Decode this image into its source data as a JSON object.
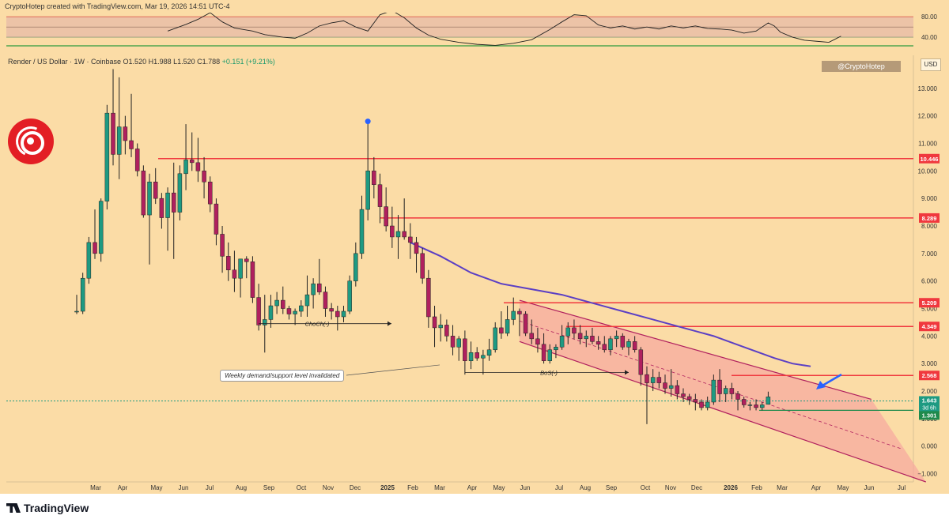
{
  "header": {
    "credit": "CryptoHotep created with TradingView.com, Mar 19, 2026 14:51 UTC-4"
  },
  "symbol": {
    "line": "Render / US Dollar · 1W · Coinbase  O1.520  H1.988  L1.520  C1.788",
    "change": "+0.151 (+9.21%)"
  },
  "watermark": "@CryptoHotep",
  "currency": "USD",
  "brand": "TradingView",
  "colors": {
    "up": "#1e9a82",
    "down": "#b0205e",
    "level": "#f0383e",
    "ma": "#5b3fc4",
    "channel": "#f7a6a0",
    "background": "#fbdca6"
  },
  "annotations": {
    "note": "Weekly demand/support level invalidated",
    "choch": "ChoCh(-)",
    "bos": "BoS(-)"
  },
  "rsi_panel": {
    "levels": [
      "80.00",
      "40.00"
    ]
  },
  "chart_data": {
    "type": "candlestick",
    "title": "Render / US Dollar · 1W · Coinbase",
    "x_labels": [
      "Mar",
      "Apr",
      "May",
      "Jun",
      "Jul",
      "Aug",
      "Sep",
      "Oct",
      "Nov",
      "Dec",
      "2025",
      "Feb",
      "Mar",
      "Apr",
      "May",
      "Jun",
      "Jul",
      "Aug",
      "Sep",
      "Oct",
      "Nov",
      "Dec",
      "2026",
      "Feb",
      "Mar",
      "Apr",
      "May",
      "Jun",
      "Jul"
    ],
    "y_ticks": [
      13,
      12,
      11,
      10,
      9,
      8,
      7,
      6,
      5,
      4,
      3,
      2,
      1,
      0,
      -1
    ],
    "y_range": [
      -1.3,
      14.2
    ],
    "horizontal_levels": [
      {
        "value": 10.446,
        "label": "10.446"
      },
      {
        "value": 8.289,
        "label": "8.289"
      },
      {
        "value": 5.209,
        "label": "5.209"
      },
      {
        "value": 4.349,
        "label": "4.349"
      },
      {
        "value": 2.568,
        "label": "2.568"
      }
    ],
    "last_price": {
      "value": 1.643,
      "label": "1.643",
      "countdown": "3d 6h"
    },
    "support": {
      "value": 1.301,
      "label": "1.301"
    },
    "candles": [
      {
        "o": 4.9,
        "h": 5.5,
        "l": 4.8,
        "c": 4.9
      },
      {
        "o": 4.9,
        "h": 6.3,
        "l": 4.8,
        "c": 6.1
      },
      {
        "o": 6.1,
        "h": 7.6,
        "l": 5.9,
        "c": 7.4
      },
      {
        "o": 7.4,
        "h": 8.6,
        "l": 6.8,
        "c": 7.0
      },
      {
        "o": 7.0,
        "h": 9.0,
        "l": 6.7,
        "c": 8.9
      },
      {
        "o": 8.9,
        "h": 12.4,
        "l": 8.6,
        "c": 12.1
      },
      {
        "o": 12.1,
        "h": 13.7,
        "l": 10.2,
        "c": 10.6
      },
      {
        "o": 10.6,
        "h": 13.4,
        "l": 9.7,
        "c": 11.6
      },
      {
        "o": 11.6,
        "h": 12.0,
        "l": 10.6,
        "c": 11.1
      },
      {
        "o": 11.1,
        "h": 12.8,
        "l": 10.5,
        "c": 10.8
      },
      {
        "o": 10.8,
        "h": 11.0,
        "l": 9.8,
        "c": 10.0
      },
      {
        "o": 10.0,
        "h": 10.2,
        "l": 8.3,
        "c": 8.4
      },
      {
        "o": 8.4,
        "h": 9.9,
        "l": 6.6,
        "c": 9.6
      },
      {
        "o": 9.6,
        "h": 10.1,
        "l": 8.8,
        "c": 9.0
      },
      {
        "o": 9.0,
        "h": 9.2,
        "l": 7.9,
        "c": 8.3
      },
      {
        "o": 8.3,
        "h": 9.4,
        "l": 7.1,
        "c": 9.2
      },
      {
        "o": 9.2,
        "h": 10.3,
        "l": 6.8,
        "c": 8.5
      },
      {
        "o": 8.5,
        "h": 10.2,
        "l": 8.2,
        "c": 9.9
      },
      {
        "o": 9.9,
        "h": 11.7,
        "l": 9.3,
        "c": 10.4
      },
      {
        "o": 10.4,
        "h": 11.4,
        "l": 10.0,
        "c": 10.3
      },
      {
        "o": 10.3,
        "h": 11.2,
        "l": 9.6,
        "c": 10.0
      },
      {
        "o": 10.0,
        "h": 10.5,
        "l": 9.0,
        "c": 9.6
      },
      {
        "o": 9.6,
        "h": 9.8,
        "l": 8.5,
        "c": 8.8
      },
      {
        "o": 8.8,
        "h": 9.0,
        "l": 7.3,
        "c": 7.7
      },
      {
        "o": 7.7,
        "h": 8.0,
        "l": 6.3,
        "c": 6.9
      },
      {
        "o": 6.9,
        "h": 7.4,
        "l": 6.0,
        "c": 6.4
      },
      {
        "o": 6.4,
        "h": 7.1,
        "l": 5.6,
        "c": 6.1
      },
      {
        "o": 6.1,
        "h": 6.8,
        "l": 5.4,
        "c": 6.8
      },
      {
        "o": 6.8,
        "h": 6.9,
        "l": 6.1,
        "c": 6.7
      },
      {
        "o": 6.7,
        "h": 6.9,
        "l": 5.2,
        "c": 5.4
      },
      {
        "o": 5.4,
        "h": 5.9,
        "l": 4.2,
        "c": 4.4
      },
      {
        "o": 4.4,
        "h": 5.5,
        "l": 3.4,
        "c": 4.6
      },
      {
        "o": 4.6,
        "h": 5.5,
        "l": 4.3,
        "c": 5.1
      },
      {
        "o": 5.1,
        "h": 5.6,
        "l": 4.8,
        "c": 5.3
      },
      {
        "o": 5.3,
        "h": 5.8,
        "l": 4.8,
        "c": 5.0
      },
      {
        "o": 5.0,
        "h": 5.1,
        "l": 4.6,
        "c": 4.8
      },
      {
        "o": 4.8,
        "h": 5.0,
        "l": 4.4,
        "c": 4.9
      },
      {
        "o": 4.9,
        "h": 5.3,
        "l": 4.7,
        "c": 5.1
      },
      {
        "o": 5.1,
        "h": 6.2,
        "l": 4.7,
        "c": 5.5
      },
      {
        "o": 5.5,
        "h": 6.1,
        "l": 5.0,
        "c": 5.9
      },
      {
        "o": 5.9,
        "h": 6.8,
        "l": 5.5,
        "c": 5.6
      },
      {
        "o": 5.6,
        "h": 5.8,
        "l": 4.7,
        "c": 5.0
      },
      {
        "o": 5.0,
        "h": 5.2,
        "l": 4.6,
        "c": 4.9
      },
      {
        "o": 4.9,
        "h": 5.1,
        "l": 4.2,
        "c": 4.7
      },
      {
        "o": 4.7,
        "h": 5.1,
        "l": 4.5,
        "c": 4.9
      },
      {
        "o": 4.9,
        "h": 6.2,
        "l": 4.8,
        "c": 6.0
      },
      {
        "o": 6.0,
        "h": 7.4,
        "l": 5.8,
        "c": 7.0
      },
      {
        "o": 7.0,
        "h": 9.1,
        "l": 6.8,
        "c": 8.6
      },
      {
        "o": 8.6,
        "h": 11.8,
        "l": 8.2,
        "c": 10.0
      },
      {
        "o": 10.0,
        "h": 10.5,
        "l": 9.0,
        "c": 9.5
      },
      {
        "o": 9.5,
        "h": 9.9,
        "l": 8.1,
        "c": 8.7
      },
      {
        "o": 8.7,
        "h": 9.4,
        "l": 7.8,
        "c": 8.0
      },
      {
        "o": 8.0,
        "h": 8.7,
        "l": 7.2,
        "c": 7.6
      },
      {
        "o": 7.6,
        "h": 8.4,
        "l": 6.8,
        "c": 7.8
      },
      {
        "o": 7.8,
        "h": 9.0,
        "l": 7.5,
        "c": 7.6
      },
      {
        "o": 7.6,
        "h": 8.1,
        "l": 6.8,
        "c": 7.4
      },
      {
        "o": 7.4,
        "h": 7.6,
        "l": 6.3,
        "c": 7.0
      },
      {
        "o": 7.0,
        "h": 7.2,
        "l": 5.9,
        "c": 6.1
      },
      {
        "o": 6.1,
        "h": 6.4,
        "l": 4.3,
        "c": 4.7
      },
      {
        "o": 4.7,
        "h": 5.1,
        "l": 3.6,
        "c": 4.3
      },
      {
        "o": 4.3,
        "h": 4.8,
        "l": 3.8,
        "c": 4.4
      },
      {
        "o": 4.4,
        "h": 4.6,
        "l": 3.8,
        "c": 4.0
      },
      {
        "o": 4.0,
        "h": 4.4,
        "l": 3.3,
        "c": 3.6
      },
      {
        "o": 3.6,
        "h": 4.0,
        "l": 3.1,
        "c": 3.9
      },
      {
        "o": 3.9,
        "h": 4.2,
        "l": 2.6,
        "c": 3.1
      },
      {
        "o": 3.1,
        "h": 3.8,
        "l": 2.8,
        "c": 3.4
      },
      {
        "o": 3.4,
        "h": 3.6,
        "l": 3.1,
        "c": 3.2
      },
      {
        "o": 3.2,
        "h": 3.5,
        "l": 2.6,
        "c": 3.3
      },
      {
        "o": 3.3,
        "h": 3.9,
        "l": 3.1,
        "c": 3.5
      },
      {
        "o": 3.5,
        "h": 4.5,
        "l": 3.4,
        "c": 4.3
      },
      {
        "o": 4.3,
        "h": 4.9,
        "l": 3.9,
        "c": 4.1
      },
      {
        "o": 4.1,
        "h": 5.1,
        "l": 4.0,
        "c": 4.6
      },
      {
        "o": 4.6,
        "h": 5.4,
        "l": 4.4,
        "c": 4.9
      },
      {
        "o": 4.9,
        "h": 5.0,
        "l": 4.0,
        "c": 4.8
      },
      {
        "o": 4.8,
        "h": 4.9,
        "l": 4.0,
        "c": 4.1
      },
      {
        "o": 4.1,
        "h": 4.6,
        "l": 3.7,
        "c": 3.9
      },
      {
        "o": 3.9,
        "h": 4.3,
        "l": 3.4,
        "c": 3.7
      },
      {
        "o": 3.7,
        "h": 4.1,
        "l": 3.0,
        "c": 3.1
      },
      {
        "o": 3.1,
        "h": 3.7,
        "l": 3.0,
        "c": 3.5
      },
      {
        "o": 3.5,
        "h": 3.7,
        "l": 3.2,
        "c": 3.6
      },
      {
        "o": 3.6,
        "h": 4.4,
        "l": 3.5,
        "c": 4.0
      },
      {
        "o": 4.0,
        "h": 4.5,
        "l": 3.7,
        "c": 4.3
      },
      {
        "o": 4.3,
        "h": 4.6,
        "l": 3.9,
        "c": 4.1
      },
      {
        "o": 4.1,
        "h": 4.4,
        "l": 3.7,
        "c": 3.9
      },
      {
        "o": 3.9,
        "h": 4.2,
        "l": 3.6,
        "c": 4.0
      },
      {
        "o": 4.0,
        "h": 4.3,
        "l": 3.7,
        "c": 3.8
      },
      {
        "o": 3.8,
        "h": 4.0,
        "l": 3.5,
        "c": 3.7
      },
      {
        "o": 3.7,
        "h": 4.0,
        "l": 3.4,
        "c": 3.5
      },
      {
        "o": 3.5,
        "h": 4.0,
        "l": 3.3,
        "c": 3.9
      },
      {
        "o": 3.9,
        "h": 4.2,
        "l": 3.6,
        "c": 4.0
      },
      {
        "o": 4.0,
        "h": 4.1,
        "l": 3.5,
        "c": 3.6
      },
      {
        "o": 3.6,
        "h": 3.9,
        "l": 3.3,
        "c": 3.8
      },
      {
        "o": 3.8,
        "h": 4.0,
        "l": 3.4,
        "c": 3.5
      },
      {
        "o": 3.5,
        "h": 3.6,
        "l": 2.2,
        "c": 2.6
      },
      {
        "o": 2.6,
        "h": 2.9,
        "l": 0.8,
        "c": 2.3
      },
      {
        "o": 2.3,
        "h": 2.8,
        "l": 2.0,
        "c": 2.5
      },
      {
        "o": 2.5,
        "h": 2.7,
        "l": 2.1,
        "c": 2.3
      },
      {
        "o": 2.3,
        "h": 2.6,
        "l": 1.9,
        "c": 2.1
      },
      {
        "o": 2.1,
        "h": 2.8,
        "l": 1.8,
        "c": 2.2
      },
      {
        "o": 2.2,
        "h": 2.4,
        "l": 1.7,
        "c": 1.9
      },
      {
        "o": 1.9,
        "h": 2.1,
        "l": 1.6,
        "c": 1.8
      },
      {
        "o": 1.8,
        "h": 1.9,
        "l": 1.5,
        "c": 1.7
      },
      {
        "o": 1.7,
        "h": 1.9,
        "l": 1.3,
        "c": 1.6
      },
      {
        "o": 1.6,
        "h": 1.7,
        "l": 1.3,
        "c": 1.4
      },
      {
        "o": 1.4,
        "h": 1.8,
        "l": 1.3,
        "c": 1.6
      },
      {
        "o": 1.6,
        "h": 2.6,
        "l": 1.5,
        "c": 2.4
      },
      {
        "o": 2.4,
        "h": 2.8,
        "l": 1.6,
        "c": 1.9
      },
      {
        "o": 1.9,
        "h": 2.2,
        "l": 1.6,
        "c": 2.1
      },
      {
        "o": 2.1,
        "h": 2.3,
        "l": 1.7,
        "c": 1.9
      },
      {
        "o": 1.9,
        "h": 2.0,
        "l": 1.3,
        "c": 1.7
      },
      {
        "o": 1.7,
        "h": 1.8,
        "l": 1.4,
        "c": 1.5
      },
      {
        "o": 1.5,
        "h": 1.6,
        "l": 1.3,
        "c": 1.5
      },
      {
        "o": 1.5,
        "h": 1.7,
        "l": 1.3,
        "c": 1.4
      },
      {
        "o": 1.4,
        "h": 1.6,
        "l": 1.3,
        "c": 1.5
      },
      {
        "o": 1.52,
        "h": 1.98,
        "l": 1.52,
        "c": 1.79
      }
    ],
    "moving_average": [
      [
        55,
        7.4
      ],
      [
        60,
        6.9
      ],
      [
        65,
        6.3
      ],
      [
        70,
        5.9
      ],
      [
        75,
        5.7
      ],
      [
        80,
        5.5
      ],
      [
        85,
        5.2
      ],
      [
        90,
        4.9
      ],
      [
        95,
        4.6
      ],
      [
        100,
        4.3
      ],
      [
        105,
        4.0
      ],
      [
        110,
        3.6
      ],
      [
        115,
        3.2
      ],
      [
        118,
        3.0
      ],
      [
        121,
        2.9
      ]
    ],
    "channel": {
      "upper": [
        [
          73,
          5.3
        ],
        [
          131,
          1.7
        ]
      ],
      "lower": [
        [
          73,
          3.8
        ],
        [
          140,
          -1.3
        ]
      ],
      "mid": [
        [
          73,
          4.55
        ],
        [
          136,
          -0.1
        ]
      ]
    },
    "rsi": [
      [
        15,
        52
      ],
      [
        18,
        65
      ],
      [
        20,
        75
      ],
      [
        22,
        88
      ],
      [
        24,
        70
      ],
      [
        26,
        58
      ],
      [
        29,
        52
      ],
      [
        31,
        45
      ],
      [
        34,
        40
      ],
      [
        36,
        38
      ],
      [
        38,
        48
      ],
      [
        40,
        62
      ],
      [
        42,
        68
      ],
      [
        44,
        72
      ],
      [
        46,
        60
      ],
      [
        48,
        52
      ],
      [
        50,
        84
      ],
      [
        52,
        92
      ],
      [
        54,
        78
      ],
      [
        56,
        58
      ],
      [
        58,
        44
      ],
      [
        60,
        36
      ],
      [
        63,
        30
      ],
      [
        66,
        26
      ],
      [
        69,
        24
      ],
      [
        72,
        28
      ],
      [
        75,
        35
      ],
      [
        78,
        55
      ],
      [
        80,
        70
      ],
      [
        82,
        84
      ],
      [
        84,
        82
      ],
      [
        86,
        64
      ],
      [
        88,
        58
      ],
      [
        90,
        62
      ],
      [
        92,
        56
      ],
      [
        94,
        60
      ],
      [
        96,
        56
      ],
      [
        98,
        62
      ],
      [
        100,
        58
      ],
      [
        102,
        62
      ],
      [
        104,
        57
      ],
      [
        106,
        56
      ],
      [
        108,
        54
      ],
      [
        110,
        48
      ],
      [
        112,
        52
      ],
      [
        114,
        68
      ],
      [
        115,
        62
      ],
      [
        116,
        50
      ],
      [
        118,
        40
      ],
      [
        120,
        34
      ],
      [
        122,
        32
      ],
      [
        124,
        30
      ],
      [
        125,
        36
      ],
      [
        126,
        42
      ]
    ]
  }
}
